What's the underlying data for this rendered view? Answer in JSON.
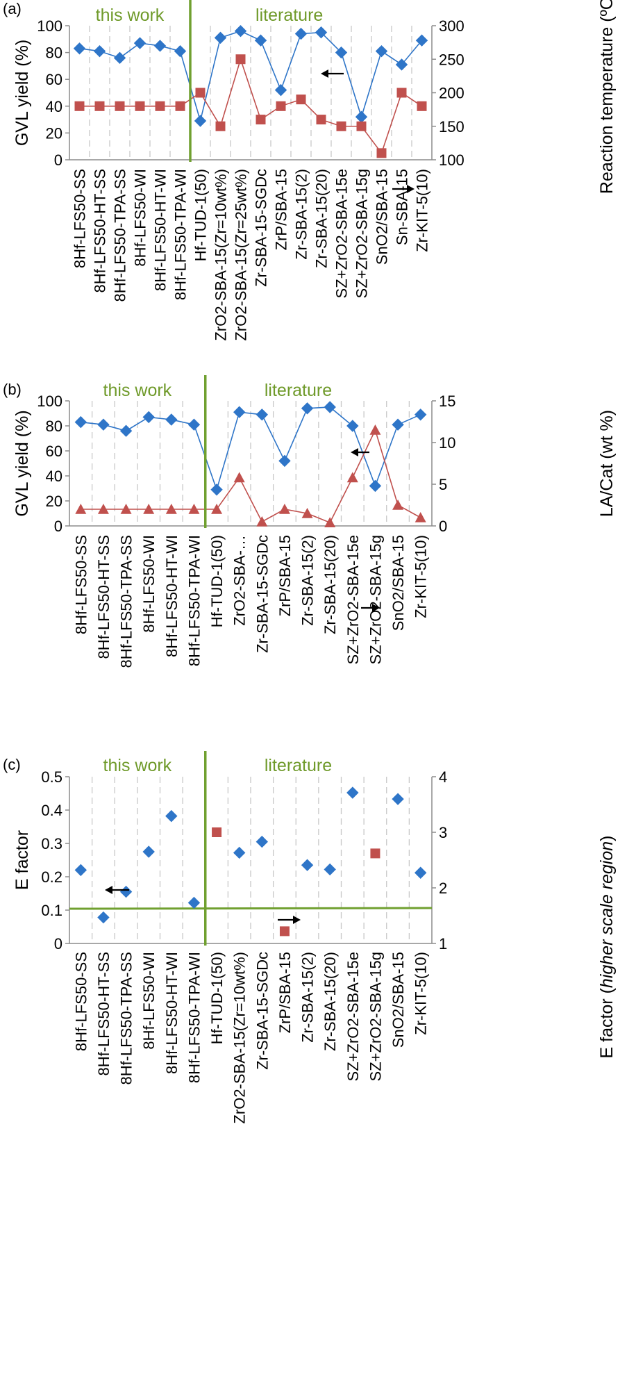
{
  "colors": {
    "blue": "#2e75c8",
    "red": "#c0504d",
    "green": "#70a030"
  },
  "chart_data": [
    {
      "panel": "(a)",
      "type": "line",
      "region_labels": [
        "this work",
        "literature"
      ],
      "ylabel": "GVL yield (%)",
      "y2label": "Reaction temperature (ºC)",
      "ylim": [
        0,
        100
      ],
      "yticks": [
        "0",
        "20",
        "40",
        "60",
        "80",
        "100"
      ],
      "y2lim": [
        100,
        300
      ],
      "y2ticks": [
        "100",
        "150",
        "200",
        "250",
        "300"
      ],
      "divider_after_index": 5,
      "categories": [
        "8Hf-LFS50-SS",
        "8Hf-LFS50-HT-SS",
        "8Hf-LFS50-TPA-SS",
        "8Hf-LFS50-WI",
        "8Hf-LFS50-HT-WI",
        "8Hf-LFS50-TPA-WI",
        "Hf-TUD-1(50)",
        "ZrO2-SBA-15(Zr=10wt%)",
        "ZrO2-SBA-15(Zr=25wt%)",
        "Zr-SBA-15-SGDc",
        "ZrP/SBA-15",
        "Zr-SBA-15(2)",
        "Zr-SBA-15(20)",
        "SZ+ZrO2-SBA-15e",
        "SZ+ZrO2-SBA-15g",
        "SnO2/SBA-15",
        "Sn-SBA-15",
        "Zr-KIT-5(10)"
      ],
      "series": [
        {
          "axis": "left",
          "marker": "diamond",
          "color": "blue",
          "values": [
            83,
            81,
            76,
            87,
            85,
            81,
            29,
            91,
            96,
            89,
            52,
            94,
            95,
            80,
            32,
            81,
            71,
            89
          ]
        },
        {
          "axis": "right",
          "marker": "square",
          "color": "red",
          "values": [
            180,
            180,
            180,
            180,
            180,
            180,
            200,
            150,
            250,
            160,
            180,
            190,
            160,
            150,
            150,
            110,
            200,
            180
          ]
        }
      ],
      "arrows": [
        {
          "dir": "left"
        },
        {
          "dir": "right"
        }
      ]
    },
    {
      "panel": "(b)",
      "type": "line",
      "region_labels": [
        "this work",
        "literature"
      ],
      "ylabel": "GVL yield (%)",
      "y2label": "LA/Cat (wt %)",
      "ylim": [
        0,
        100
      ],
      "yticks": [
        "0",
        "20",
        "40",
        "60",
        "80",
        "100"
      ],
      "y2lim": [
        0,
        15
      ],
      "y2ticks": [
        "0",
        "5",
        "10",
        "15"
      ],
      "divider_after_index": 5,
      "categories": [
        "8Hf-LFS50-SS",
        "8Hf-LFS50-HT-SS",
        "8Hf-LFS50-TPA-SS",
        "8Hf-LFS50-WI",
        "8Hf-LFS50-HT-WI",
        "8Hf-LFS50-TPA-WI",
        "Hf-TUD-1(50)",
        "ZrO2-SBA-…",
        "Zr-SBA-15-SGDc",
        "ZrP/SBA-15",
        "Zr-SBA-15(2)",
        "Zr-SBA-15(20)",
        "SZ+ZrO2-SBA-15e",
        "SZ+ZrO2-SBA-15g",
        "SnO2/SBA-15",
        "Zr-KIT-5(10)"
      ],
      "series": [
        {
          "axis": "left",
          "marker": "diamond",
          "color": "blue",
          "values": [
            83,
            81,
            76,
            87,
            85,
            81,
            29,
            91,
            89,
            52,
            94,
            95,
            80,
            32,
            81,
            89
          ]
        },
        {
          "axis": "right",
          "marker": "triangle",
          "color": "red",
          "values": [
            2,
            2,
            2,
            2,
            2,
            2,
            2,
            5.8,
            0.5,
            2,
            1.5,
            0.4,
            5.8,
            11.5,
            2.5,
            1
          ]
        }
      ],
      "arrows": [
        {
          "dir": "left"
        },
        {
          "dir": "right"
        }
      ]
    },
    {
      "panel": "(c)",
      "type": "scatter",
      "region_labels": [
        "this work",
        "literature"
      ],
      "ylabel": "E factor",
      "y2label_main": "E factor (",
      "y2label_italic": "higher scale region",
      "y2label_close": ")",
      "ylim": [
        0,
        0.5
      ],
      "yticks": [
        "0",
        "0.1",
        "0.2",
        "0.3",
        "0.4",
        "0.5"
      ],
      "y2lim": [
        1,
        4
      ],
      "y2ticks": [
        "1",
        "2",
        "3",
        "4"
      ],
      "divider_after_index": 5,
      "categories": [
        "8Hf-LFS50-SS",
        "8Hf-LFS50-HT-SS",
        "8Hf-LFS50-TPA-SS",
        "8Hf-LFS50-WI",
        "8Hf-LFS50-HT-WI",
        "8Hf-LFS50-TPA-WI",
        "Hf-TUD-1(50)",
        "ZrO2-SBA-15(Zr=10wt%)",
        "Zr-SBA-15-SGDc",
        "ZrP/SBA-15",
        "Zr-SBA-15(2)",
        "Zr-SBA-15(20)",
        "SZ+ZrO2-SBA-15e",
        "SZ+ZrO2-SBA-15g",
        "SnO2/SBA-15",
        "Zr-KIT-5(10)"
      ],
      "series": [
        {
          "axis": "left",
          "marker": "diamond",
          "color": "blue",
          "values": [
            0.22,
            0.078,
            0.155,
            0.275,
            0.382,
            0.122,
            null,
            0.272,
            0.305,
            null,
            0.235,
            0.222,
            0.452,
            null,
            0.433,
            0.212
          ]
        },
        {
          "axis": "right",
          "marker": "square",
          "color": "red",
          "values": [
            null,
            null,
            null,
            null,
            null,
            null,
            3.0,
            null,
            null,
            1.22,
            null,
            null,
            null,
            2.62,
            null,
            null
          ]
        }
      ],
      "arrows": [
        {
          "dir": "left"
        },
        {
          "dir": "right"
        }
      ]
    }
  ]
}
